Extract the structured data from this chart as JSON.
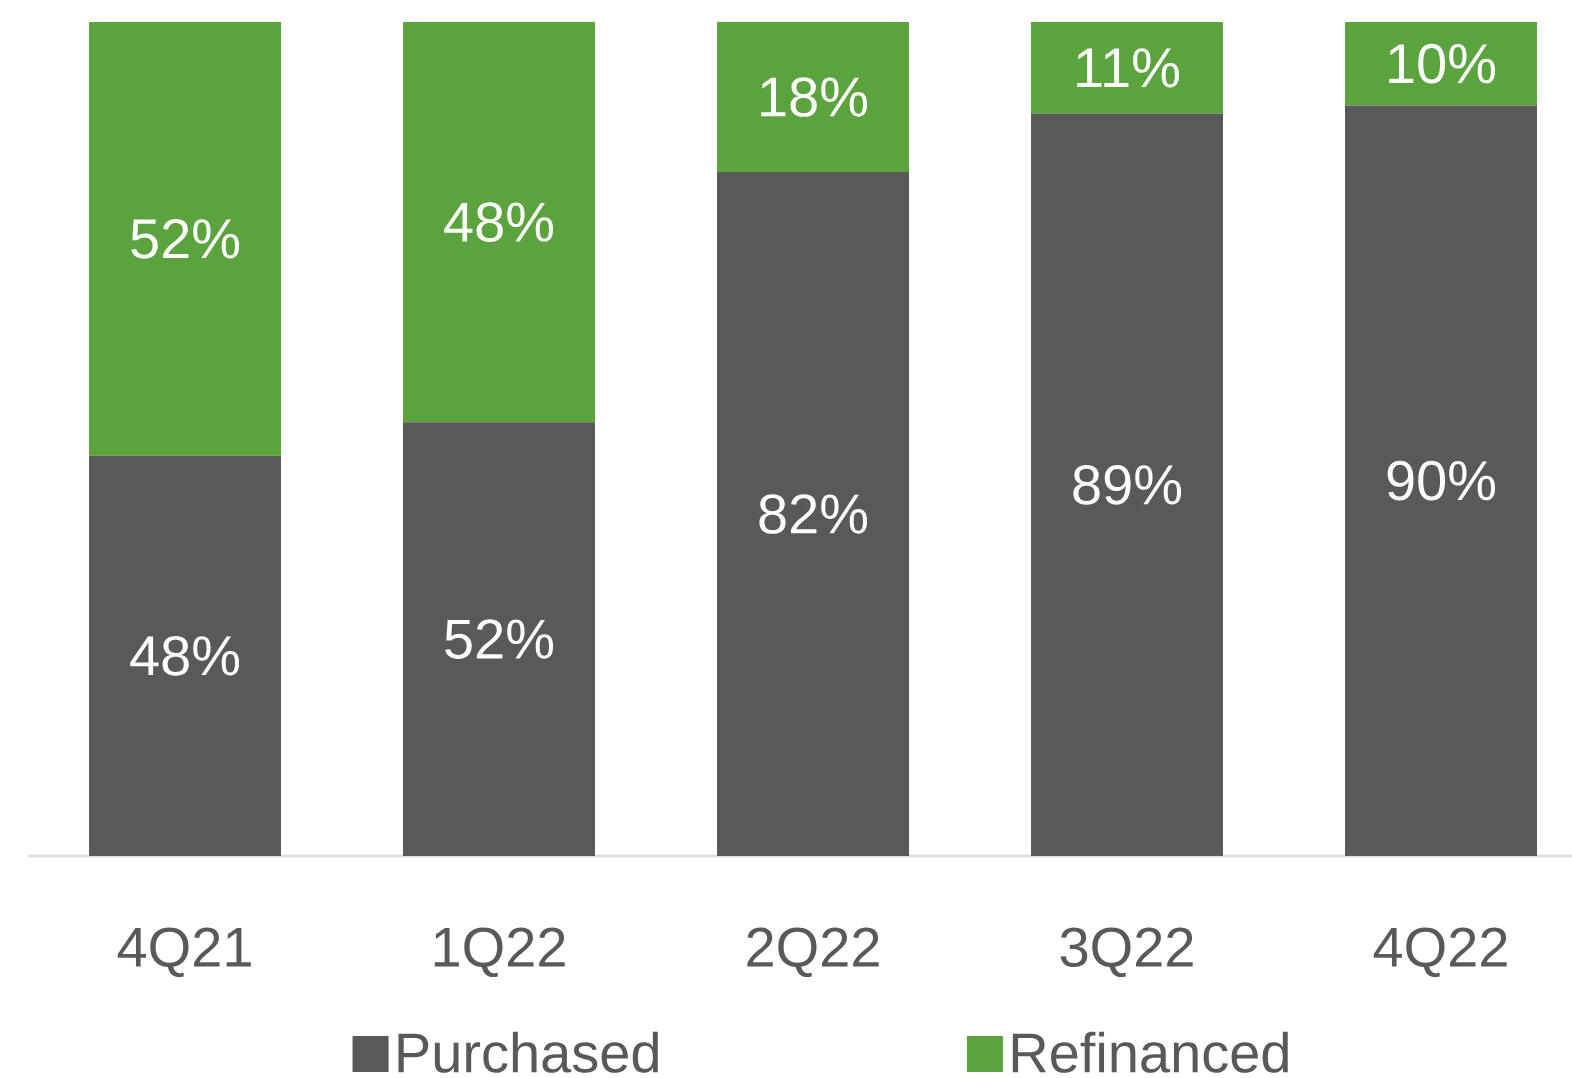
{
  "chart_data": {
    "type": "bar",
    "stacked": true,
    "categories": [
      "4Q21",
      "1Q22",
      "2Q22",
      "3Q22",
      "4Q22"
    ],
    "series": [
      {
        "name": "Purchased",
        "color": "#595959",
        "values": [
          48,
          52,
          82,
          89,
          90
        ],
        "value_labels": [
          "48%",
          "52%",
          "82%",
          "89%",
          "90%"
        ]
      },
      {
        "name": "Refinanced",
        "color": "#5ba33d",
        "values": [
          52,
          48,
          18,
          11,
          10
        ],
        "value_labels": [
          "52%",
          "48%",
          "18%",
          "11%",
          "10%"
        ]
      }
    ],
    "ylim": [
      0,
      100
    ],
    "tick_labels": "x",
    "legend": "bottom"
  }
}
